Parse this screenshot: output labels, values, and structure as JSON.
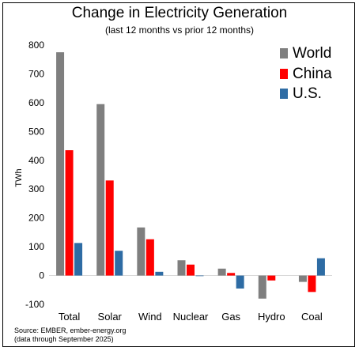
{
  "chart_data": {
    "type": "bar",
    "title": "Change in Electricity Generation",
    "subtitle": "(last 12 months vs prior 12 months)",
    "ylabel": "TWh",
    "xlabel": "",
    "ylim": [
      -100,
      800
    ],
    "yticks": [
      800,
      700,
      600,
      500,
      400,
      300,
      200,
      100,
      0,
      -100
    ],
    "grid": false,
    "legend_position": "top-right",
    "categories": [
      "Total",
      "Solar",
      "Wind",
      "Nuclear",
      "Gas",
      "Hydro",
      "Coal"
    ],
    "series": [
      {
        "name": "World",
        "color": "#7f7f7f",
        "values": [
          775,
          595,
          167,
          53,
          24,
          -80,
          -22
        ]
      },
      {
        "name": "China",
        "color": "#ff0000",
        "values": [
          435,
          330,
          126,
          38,
          9,
          -17,
          -57
        ]
      },
      {
        "name": "U.S.",
        "color": "#2e6ca4",
        "values": [
          113,
          86,
          13,
          -2,
          -45,
          0,
          60
        ]
      }
    ]
  },
  "source": {
    "line1": "Source: EMBER, ember-energy.org",
    "line2": "(data through September 2025)"
  }
}
